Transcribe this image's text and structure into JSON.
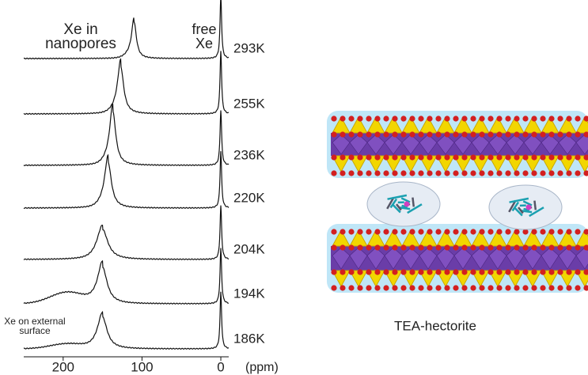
{
  "chart_data": {
    "type": "spectra",
    "x_label": "(ppm)",
    "xlim": [
      250,
      -10
    ],
    "xticks": [
      200,
      100,
      0
    ],
    "annotations": {
      "nanopores": [
        "Xe in",
        "nanopores"
      ],
      "free": [
        "free",
        "Xe"
      ],
      "surface": [
        "Xe on external",
        "surface"
      ]
    },
    "series": [
      {
        "name": "293K",
        "peaks": [
          110,
          0
        ]
      },
      {
        "name": "255K",
        "peaks": [
          127,
          0
        ]
      },
      {
        "name": "236K",
        "peaks": [
          137,
          0
        ]
      },
      {
        "name": "220K",
        "peaks": [
          143,
          0
        ]
      },
      {
        "name": "204K",
        "peaks": [
          150,
          0
        ]
      },
      {
        "name": "194K",
        "peaks": [
          150,
          0
        ]
      },
      {
        "name": "186K",
        "peaks": [
          150,
          0
        ]
      }
    ]
  },
  "figure": {
    "caption": "TEA-hectorite"
  }
}
